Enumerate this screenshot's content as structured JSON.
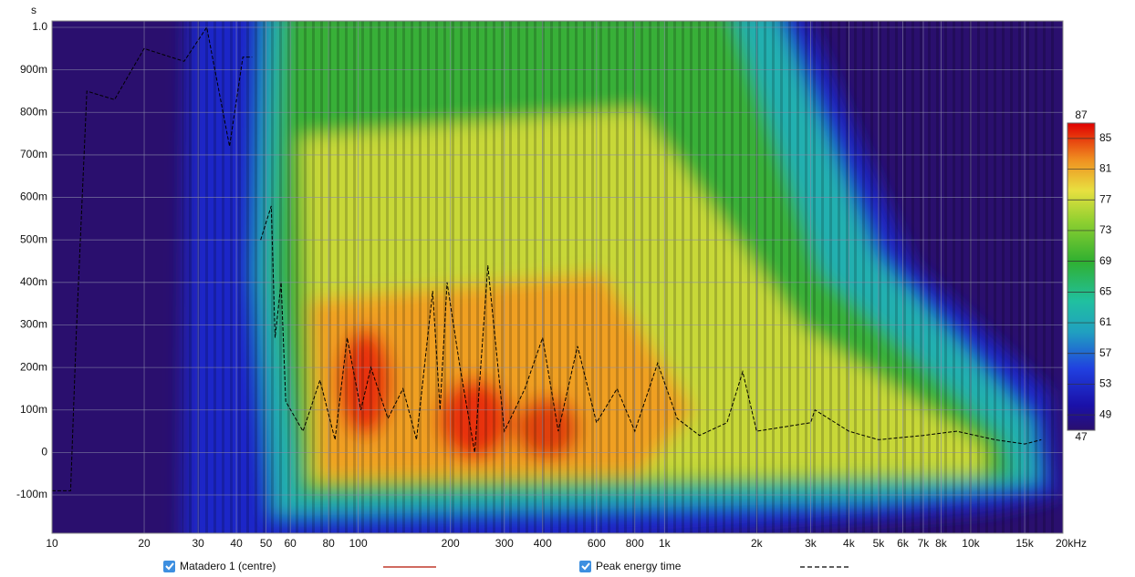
{
  "chart_data": {
    "type": "spectrogram",
    "y_unit": "s",
    "xscale": "log",
    "xlim": [
      10,
      20000
    ],
    "ylim": [
      -0.19,
      1.015
    ],
    "xticks": [
      10,
      20,
      30,
      40,
      50,
      60,
      80,
      100,
      200,
      300,
      400,
      600,
      800,
      {
        "value": 1000,
        "label": "1k"
      },
      {
        "value": 2000,
        "label": "2k"
      },
      {
        "value": 3000,
        "label": "3k"
      },
      {
        "value": 4000,
        "label": "4k"
      },
      {
        "value": 5000,
        "label": "5k"
      },
      {
        "value": 6000,
        "label": "6k"
      },
      {
        "value": 7000,
        "label": "7k"
      },
      {
        "value": 8000,
        "label": "8k"
      },
      {
        "value": 10000,
        "label": "10k"
      },
      {
        "value": 15000,
        "label": "15k"
      },
      {
        "value": 20000,
        "label": "20kHz"
      }
    ],
    "yticks": [
      {
        "value": 1.0,
        "label": "1.0"
      },
      {
        "value": 0.9,
        "label": "900m"
      },
      {
        "value": 0.8,
        "label": "800m"
      },
      {
        "value": 0.7,
        "label": "700m"
      },
      {
        "value": 0.6,
        "label": "600m"
      },
      {
        "value": 0.5,
        "label": "500m"
      },
      {
        "value": 0.4,
        "label": "400m"
      },
      {
        "value": 0.3,
        "label": "300m"
      },
      {
        "value": 0.2,
        "label": "200m"
      },
      {
        "value": 0.1,
        "label": "100m"
      },
      0,
      {
        "value": -0.1,
        "label": "-100m"
      }
    ],
    "grid": true,
    "colorbar": {
      "lim": [
        47,
        87
      ],
      "ticks": [
        47,
        49,
        53,
        57,
        61,
        65,
        69,
        73,
        77,
        81,
        85,
        87
      ]
    },
    "measurement": {
      "name": "Matadero 1 (centre)",
      "color": "#c0392b"
    },
    "series": [
      {
        "name": "Peak energy time",
        "color": "#000000",
        "dash": true,
        "x": [
          10,
          11.5,
          12,
          13,
          16,
          20,
          27,
          32,
          38,
          42,
          45,
          null,
          48,
          52,
          53.5,
          56,
          58,
          66,
          75,
          84,
          92,
          102,
          110,
          125,
          140,
          155,
          175,
          185,
          195,
          215,
          240,
          265,
          300,
          350,
          400,
          450,
          520,
          600,
          700,
          800,
          950,
          1100,
          1300,
          1600,
          1800,
          2000,
          3000,
          3100,
          4000,
          5000,
          7000,
          9000,
          12000,
          15000,
          17000
        ],
        "values": [
          -0.09,
          -0.09,
          0.28,
          0.85,
          0.83,
          0.95,
          0.92,
          1.0,
          0.72,
          0.93,
          0.93,
          null,
          0.5,
          0.58,
          0.27,
          0.4,
          0.12,
          0.05,
          0.17,
          0.03,
          0.27,
          0.1,
          0.2,
          0.08,
          0.15,
          0.03,
          0.38,
          0.1,
          0.4,
          0.2,
          0.0,
          0.44,
          0.05,
          0.15,
          0.27,
          0.05,
          0.25,
          0.07,
          0.15,
          0.05,
          0.21,
          0.08,
          0.04,
          0.07,
          0.19,
          0.05,
          0.07,
          0.1,
          0.05,
          0.03,
          0.04,
          0.05,
          0.03,
          0.02,
          0.03
        ]
      }
    ]
  }
}
